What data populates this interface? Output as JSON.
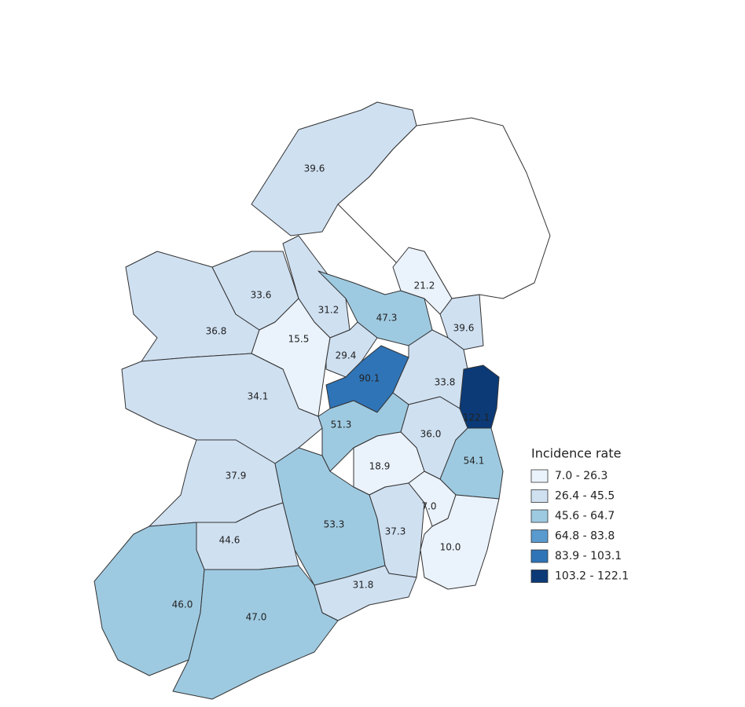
{
  "legend": {
    "title": "Incidence rate",
    "classes": [
      {
        "label": "7.0 - 26.3",
        "color": "#eaf2fb"
      },
      {
        "label": "26.4 - 45.5",
        "color": "#cfe0f1"
      },
      {
        "label": "45.6 - 64.7",
        "color": "#9ecae1"
      },
      {
        "label": "64.8 - 83.8",
        "color": "#5a9bcf"
      },
      {
        "label": "83.9 - 103.1",
        "color": "#2f74b7"
      },
      {
        "label": "103.2 - 122.1",
        "color": "#0b3a77"
      }
    ]
  },
  "regions": [
    {
      "value": "39.6",
      "color": "#cfe0f1"
    },
    {
      "value": "36.8",
      "color": "#cfe0f1"
    },
    {
      "value": "33.6",
      "color": "#cfe0f1"
    },
    {
      "value": "31.2",
      "color": "#cfe0f1"
    },
    {
      "value": "15.5",
      "color": "#eaf2fb"
    },
    {
      "value": "34.1",
      "color": "#cfe0f1"
    },
    {
      "value": "47.3",
      "color": "#9ecae1"
    },
    {
      "value": "21.2",
      "color": "#eaf2fb"
    },
    {
      "value": "39.6",
      "color": "#cfe0f1"
    },
    {
      "value": "29.4",
      "color": "#cfe0f1"
    },
    {
      "value": "90.1",
      "color": "#2f74b7"
    },
    {
      "value": "33.8",
      "color": "#cfe0f1"
    },
    {
      "value": "122.1",
      "color": "#0b3a77"
    },
    {
      "value": "51.3",
      "color": "#9ecae1"
    },
    {
      "value": "36.0",
      "color": "#cfe0f1"
    },
    {
      "value": "54.1",
      "color": "#9ecae1"
    },
    {
      "value": "18.9",
      "color": "#eaf2fb"
    },
    {
      "value": "37.9",
      "color": "#cfe0f1"
    },
    {
      "value": "53.3",
      "color": "#9ecae1"
    },
    {
      "value": "37.3",
      "color": "#cfe0f1"
    },
    {
      "value": "7.0",
      "color": "#eaf2fb"
    },
    {
      "value": "10.0",
      "color": "#eaf2fb"
    },
    {
      "value": "44.6",
      "color": "#cfe0f1"
    },
    {
      "value": "31.8",
      "color": "#cfe0f1"
    },
    {
      "value": "46.0",
      "color": "#9ecae1"
    },
    {
      "value": "47.0",
      "color": "#9ecae1"
    }
  ]
}
